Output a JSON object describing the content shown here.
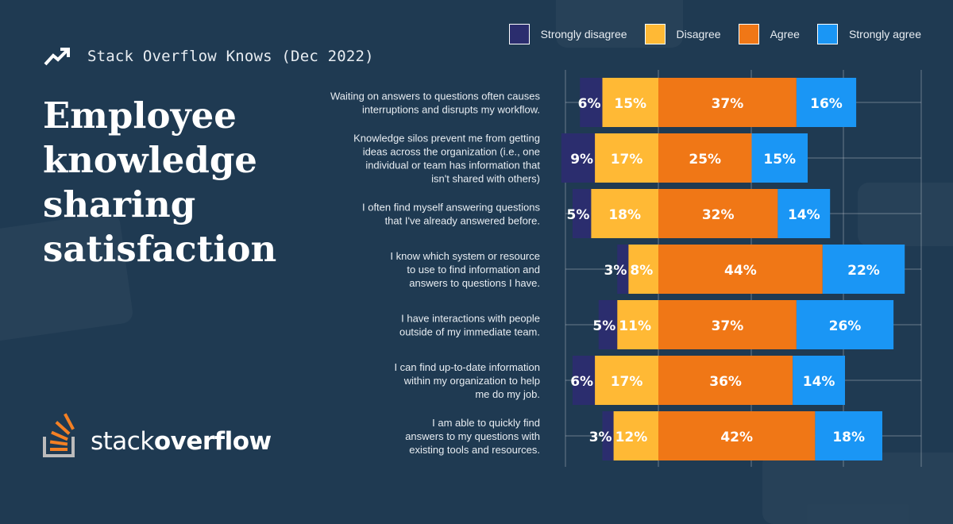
{
  "header": {
    "icon": "trending-up-icon",
    "label": "Stack Overflow Knows (Dec 2022)"
  },
  "title": [
    "Employee",
    "knowledge",
    "sharing",
    "satisfaction"
  ],
  "logo": {
    "icon": "stackoverflow-logo-icon",
    "text_light": "stack",
    "text_bold": "overflow"
  },
  "colors": {
    "background": "#1f3a52",
    "strongly_disagree": "#2b2d6e",
    "disagree": "#ffb935",
    "agree": "#f07716",
    "strongly_agree": "#1a96f5"
  },
  "chart_data": {
    "type": "bar",
    "orientation": "horizontal-diverging-stacked",
    "legend_position": "top-right",
    "grid": true,
    "series": [
      {
        "name": "Strongly disagree",
        "values": [
          6,
          9,
          5,
          3,
          5,
          6,
          3
        ]
      },
      {
        "name": "Disagree",
        "values": [
          15,
          17,
          18,
          8,
          11,
          17,
          12
        ]
      },
      {
        "name": "Agree",
        "values": [
          37,
          25,
          32,
          44,
          37,
          36,
          42
        ]
      },
      {
        "name": "Strongly agree",
        "values": [
          16,
          15,
          14,
          22,
          26,
          14,
          18
        ]
      }
    ],
    "categories": [
      [
        "Waiting on answers to questions often causes",
        "interruptions and disrupts my workflow."
      ],
      [
        "Knowledge silos prevent me from getting",
        "ideas across the organization (i.e., one",
        "individual or team has information that",
        "isn't shared with others)"
      ],
      [
        "I often find myself answering questions",
        "that I've already answered before."
      ],
      [
        "I know which system or resource",
        "to use to find information and",
        "answers to questions I have."
      ],
      [
        "I have interactions with people",
        "outside of my immediate team."
      ],
      [
        "I can find up-to-date information",
        "within my organization to help",
        "me do my job."
      ],
      [
        "I am able to quickly find",
        "answers to my questions with",
        "existing tools and resources."
      ]
    ],
    "value_suffix": "%"
  }
}
